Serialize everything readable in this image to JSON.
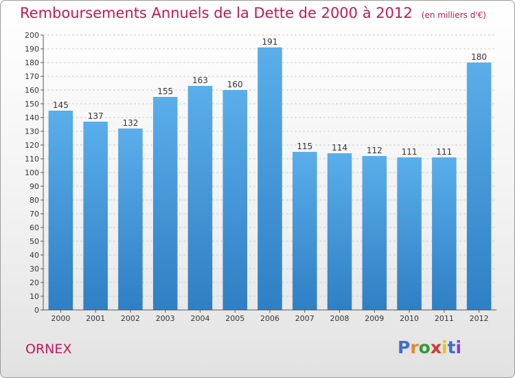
{
  "header": {
    "title": "Remboursements Annuels de la Dette de 2000 à 2012",
    "unit": "(en milliers d'€)"
  },
  "footer": {
    "commune": "ORNEX",
    "logo_text": "Proxiti",
    "logo_colors": [
      "#3b6fcf",
      "#e8862a",
      "#2f9a3a",
      "#d9342b",
      "#e8c21f",
      "#3b6fcf",
      "#8a3fbf"
    ]
  },
  "colors": {
    "bar": "#4a9de0",
    "bar_top": "#5aaeea",
    "bar_bottom": "#2f7fc4",
    "title": "#c0185a",
    "grid": "#cccccc"
  },
  "chart_data": {
    "type": "bar",
    "categories": [
      "2000",
      "2001",
      "2002",
      "2003",
      "2004",
      "2005",
      "2006",
      "2007",
      "2008",
      "2009",
      "2010",
      "2011",
      "2012"
    ],
    "values": [
      145,
      137,
      132,
      155,
      163,
      160,
      191,
      115,
      114,
      112,
      111,
      111,
      180
    ],
    "ylim": [
      0,
      200
    ],
    "ytick_step": 10,
    "grid": true
  }
}
